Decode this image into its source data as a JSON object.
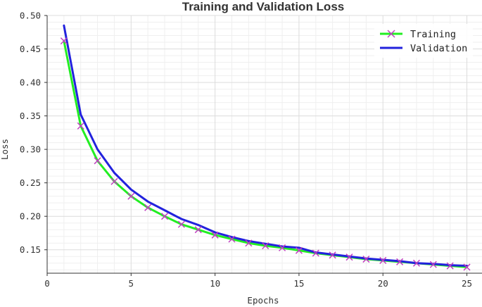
{
  "chart_data": {
    "type": "line",
    "title": "Training and Validation Loss",
    "xlabel": "Epochs",
    "ylabel": "Loss",
    "xlim": [
      0,
      25.9
    ],
    "ylim": [
      0.115,
      0.5
    ],
    "grid": true,
    "legend_position": "top-right",
    "x_ticks": [
      0,
      5,
      10,
      15,
      20,
      25
    ],
    "y_ticks": [
      0.15,
      0.2,
      0.25,
      0.3,
      0.35,
      0.4,
      0.45,
      0.5
    ],
    "x": [
      1,
      2,
      3,
      4,
      5,
      6,
      7,
      8,
      9,
      10,
      11,
      12,
      13,
      14,
      15,
      16,
      17,
      18,
      19,
      20,
      21,
      22,
      23,
      24,
      25
    ],
    "series": [
      {
        "name": "Training",
        "color": "#22ee22",
        "marker": "x",
        "marker_color": "#c040c0",
        "values": [
          0.462,
          0.335,
          0.283,
          0.252,
          0.23,
          0.213,
          0.2,
          0.188,
          0.18,
          0.172,
          0.166,
          0.16,
          0.156,
          0.153,
          0.149,
          0.145,
          0.142,
          0.139,
          0.136,
          0.134,
          0.132,
          0.13,
          0.128,
          0.126,
          0.124
        ]
      },
      {
        "name": "Validation",
        "color": "#2222dd",
        "values": [
          0.485,
          0.352,
          0.3,
          0.265,
          0.24,
          0.222,
          0.209,
          0.196,
          0.187,
          0.176,
          0.169,
          0.163,
          0.159,
          0.155,
          0.153,
          0.146,
          0.143,
          0.14,
          0.137,
          0.135,
          0.133,
          0.13,
          0.129,
          0.127,
          0.126
        ]
      }
    ]
  }
}
